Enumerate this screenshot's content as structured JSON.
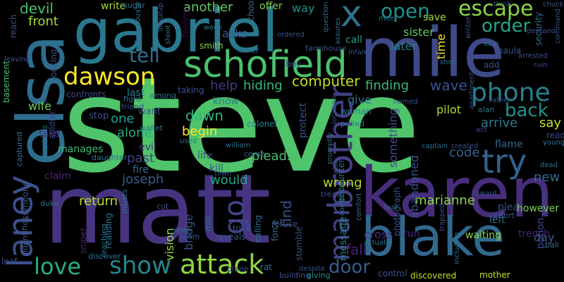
{
  "words": [
    {
      "text": "steve",
      "color": "#4fc46a"
    },
    {
      "text": "matt",
      "color": "#463480"
    },
    {
      "text": "elsa",
      "color": "#2e6e8e"
    },
    {
      "text": "gabriel",
      "color": "#2a788e"
    },
    {
      "text": "mile",
      "color": "#3e4a89"
    },
    {
      "text": "karen",
      "color": "#472d7b"
    },
    {
      "text": "blake",
      "color": "#31688e"
    },
    {
      "text": "schofield",
      "color": "#4ac16d"
    },
    {
      "text": "x",
      "color": "#2c728e"
    },
    {
      "text": "laney",
      "color": "#3b518b"
    },
    {
      "text": "brother",
      "color": "#423f85"
    },
    {
      "text": "dawson",
      "color": "#fde725"
    },
    {
      "text": "attack",
      "color": "#8fd744"
    },
    {
      "text": "show",
      "color": "#24868e"
    },
    {
      "text": "love",
      "color": "#27ad81"
    },
    {
      "text": "try",
      "color": "#34618d"
    },
    {
      "text": "phone",
      "color": "#26828e"
    },
    {
      "text": "go",
      "color": "#404688"
    },
    {
      "text": "man",
      "color": "#414487"
    },
    {
      "text": "escape",
      "color": "#8bd646"
    },
    {
      "text": "open",
      "color": "#21918c"
    },
    {
      "text": "tell",
      "color": "#2e6f8e"
    },
    {
      "text": "back",
      "color": "#20928c"
    },
    {
      "text": "order",
      "color": "#21a585"
    },
    {
      "text": "devil",
      "color": "#46c06f"
    },
    {
      "text": "front",
      "color": "#a5db36"
    },
    {
      "text": "door",
      "color": "#365c8d"
    },
    {
      "text": "computer",
      "color": "#c2df23"
    },
    {
      "text": "hiding",
      "color": "#38b977"
    },
    {
      "text": "help",
      "color": "#453882"
    },
    {
      "text": "finding",
      "color": "#3aba76"
    },
    {
      "text": "wave",
      "color": "#3b528b"
    },
    {
      "text": "dawn",
      "color": "#31b57b"
    },
    {
      "text": "begin",
      "color": "#fde725"
    },
    {
      "text": "one",
      "color": "#1f9f88"
    },
    {
      "text": "alone",
      "color": "#24aa83"
    },
    {
      "text": "arrive",
      "color": "#2a788e"
    },
    {
      "text": "say",
      "color": "#c8e020"
    },
    {
      "text": "code",
      "color": "#33638d"
    },
    {
      "text": "past",
      "color": "#3f4788"
    },
    {
      "text": "joseph",
      "color": "#375b8d"
    },
    {
      "text": "return",
      "color": "#b5de2b"
    },
    {
      "text": "would",
      "color": "#22a884"
    },
    {
      "text": "wrong",
      "color": "#b2dd2d"
    },
    {
      "text": "marianne",
      "color": "#8bd646"
    },
    {
      "text": "new",
      "color": "#2f6c8e"
    },
    {
      "text": "abandoned",
      "color": "#3b528b"
    },
    {
      "text": "fall",
      "color": "#482173"
    },
    {
      "text": "find",
      "color": "#3b528b"
    },
    {
      "text": "pleads",
      "color": "#4ac16d"
    },
    {
      "text": "vision",
      "color": "#95d840"
    },
    {
      "text": "bridge",
      "color": "#3b528b"
    },
    {
      "text": "wife",
      "color": "#6ece58"
    },
    {
      "text": "sister",
      "color": "#5ec962"
    },
    {
      "text": "later",
      "color": "#26828e"
    },
    {
      "text": "save",
      "color": "#a0da39"
    },
    {
      "text": "call",
      "color": "#1fa088"
    },
    {
      "text": "time",
      "color": "#fde725"
    },
    {
      "text": "asks",
      "color": "#375b8d"
    },
    {
      "text": "give",
      "color": "#2d718e"
    },
    {
      "text": "something",
      "color": "#3e4c8a"
    },
    {
      "text": "protect",
      "color": "#3b528b"
    },
    {
      "text": "message",
      "color": "#25858e"
    },
    {
      "text": "cross",
      "color": "#472f7d"
    },
    {
      "text": "left",
      "color": "#2a788e"
    },
    {
      "text": "pilot",
      "color": "#a8db34"
    },
    {
      "text": "flame",
      "color": "#31688e"
    },
    {
      "text": "read",
      "color": "#3e4989"
    },
    {
      "text": "plea",
      "color": "#3e4a89"
    },
    {
      "text": "however",
      "color": "#7ad151"
    },
    {
      "text": "day",
      "color": "#355e8d"
    },
    {
      "text": "trench",
      "color": "#482475"
    },
    {
      "text": "potion",
      "color": "#404688"
    },
    {
      "text": "waiting",
      "color": "#8bd646"
    },
    {
      "text": "run",
      "color": "#482677"
    },
    {
      "text": "discovered",
      "color": "#c2df23"
    },
    {
      "text": "mother",
      "color": "#c8e020"
    },
    {
      "text": "manages",
      "color": "#3fbc73"
    },
    {
      "text": "take",
      "color": "#472d7b"
    },
    {
      "text": "fire",
      "color": "#2e6e8e"
    },
    {
      "text": "evil",
      "color": "#482878"
    },
    {
      "text": "life",
      "color": "#3b528b"
    },
    {
      "text": "kill",
      "color": "#3b528b"
    },
    {
      "text": "claim",
      "color": "#482677"
    },
    {
      "text": "basement",
      "color": "#4ac16d"
    },
    {
      "text": "looking",
      "color": "#3b528b"
    },
    {
      "text": "confronts",
      "color": "#3e4989"
    },
    {
      "text": "last",
      "color": "#27808e"
    },
    {
      "text": "soldier",
      "color": "#3e4a89"
    },
    {
      "text": "colonel",
      "color": "#26828e"
    },
    {
      "text": "know",
      "color": "#2a788e"
    },
    {
      "text": "another",
      "color": "#5ec962"
    },
    {
      "text": "write",
      "color": "#a0da39"
    },
    {
      "text": "offer",
      "color": "#7ad151"
    },
    {
      "text": "way",
      "color": "#20928c"
    },
    {
      "text": "security",
      "color": "#2d708e"
    },
    {
      "text": "reach",
      "color": "#3b528b"
    },
    {
      "text": "feeling",
      "color": "#440154"
    },
    {
      "text": "someone",
      "color": "#3b528b"
    },
    {
      "text": "realising",
      "color": "#2a788e"
    },
    {
      "text": "reveals",
      "color": "#38588c"
    },
    {
      "text": "refuse",
      "color": "#3b528b"
    },
    {
      "text": "photograph",
      "color": "#3b528b"
    },
    {
      "text": "encounter",
      "color": "#2d708e"
    },
    {
      "text": "calling",
      "color": "#2c728e"
    },
    {
      "text": "force",
      "color": "#2c728e"
    },
    {
      "text": "stumble",
      "color": "#3b528b"
    },
    {
      "text": "rat",
      "color": "#2c728e"
    },
    {
      "text": "building",
      "color": "#3b528b"
    },
    {
      "text": "giving",
      "color": "#21918c"
    },
    {
      "text": "control",
      "color": "#3b528b"
    },
    {
      "text": "leaf",
      "color": "#3b528b"
    },
    {
      "text": "identifies",
      "color": "#3b528b"
    },
    {
      "text": "sniper",
      "color": "#482878"
    },
    {
      "text": "reaching",
      "color": "#2c728e"
    },
    {
      "text": "plane",
      "color": "#3b528b"
    },
    {
      "text": "discover",
      "color": "#2c728e"
    },
    {
      "text": "room",
      "color": "#3b528b"
    },
    {
      "text": "trick",
      "color": "#3b528b"
    },
    {
      "text": "milk",
      "color": "#2c728e"
    },
    {
      "text": "note",
      "color": "#2c728e"
    },
    {
      "text": "cut",
      "color": "#3b528b"
    },
    {
      "text": "insists",
      "color": "#2c728e"
    },
    {
      "text": "duke",
      "color": "#2c728e"
    },
    {
      "text": "explains",
      "color": "#2c728e"
    },
    {
      "text": "captured",
      "color": "#2c728e"
    },
    {
      "text": "daughter",
      "color": "#2c728e"
    },
    {
      "text": "wallet",
      "color": "#2c728e"
    },
    {
      "text": "friend",
      "color": "#3b528b"
    },
    {
      "text": "fight",
      "color": "#2c728e"
    },
    {
      "text": "stop",
      "color": "#3b528b"
    },
    {
      "text": "want",
      "color": "#3b528b"
    },
    {
      "text": "among",
      "color": "#2c728e"
    },
    {
      "text": "taking",
      "color": "#3b528b"
    },
    {
      "text": "smith",
      "color": "#8bd646"
    },
    {
      "text": "boy",
      "color": "#3b528b"
    },
    {
      "text": "week",
      "color": "#2c728e"
    },
    {
      "text": "chooses",
      "color": "#2c728e"
    },
    {
      "text": "farmhouse",
      "color": "#3b528b"
    },
    {
      "text": "father",
      "color": "#2c728e"
    },
    {
      "text": "shoot",
      "color": "#2c728e"
    },
    {
      "text": "shot",
      "color": "#2c728e"
    },
    {
      "text": "ordered",
      "color": "#3b528b"
    },
    {
      "text": "assures",
      "color": "#2c728e"
    },
    {
      "text": "question",
      "color": "#2c728e"
    },
    {
      "text": "infant",
      "color": "#3b528b"
    },
    {
      "text": "meet",
      "color": "#2c728e"
    },
    {
      "text": "sugar",
      "color": "#2c728e"
    },
    {
      "text": "acknowledges",
      "color": "#2c728e"
    },
    {
      "text": "drunken",
      "color": "#3b528b"
    },
    {
      "text": "woman",
      "color": "#2c728e"
    },
    {
      "text": "named",
      "color": "#3b528b"
    },
    {
      "text": "pulled",
      "color": "#2c728e"
    },
    {
      "text": "location",
      "color": "#3b528b"
    },
    {
      "text": "captain",
      "color": "#2c728e"
    },
    {
      "text": "created",
      "color": "#3b528b"
    },
    {
      "text": "come",
      "color": "#2c728e"
    },
    {
      "text": "william",
      "color": "#2c728e"
    },
    {
      "text": "used",
      "color": "#2c728e"
    },
    {
      "text": "town",
      "color": "#3b528b"
    },
    {
      "text": "promptly",
      "color": "#2c728e"
    },
    {
      "text": "also",
      "color": "#3b528b"
    },
    {
      "text": "treat",
      "color": "#3b528b"
    },
    {
      "text": "company",
      "color": "#2c728e"
    },
    {
      "text": "despite",
      "color": "#3b528b"
    },
    {
      "text": "comfort",
      "color": "#2c728e"
    },
    {
      "text": "actually",
      "color": "#2c728e"
    },
    {
      "text": "fear",
      "color": "#2c728e"
    },
    {
      "text": "trapped",
      "color": "#3b528b"
    },
    {
      "text": "including",
      "color": "#2c728e"
    },
    {
      "text": "effort",
      "color": "#3b528b"
    },
    {
      "text": "several",
      "color": "#3b528b"
    },
    {
      "text": "ball",
      "color": "#2c728e"
    },
    {
      "text": "toward",
      "color": "#3b528b"
    },
    {
      "text": "act",
      "color": "#3b528b"
    },
    {
      "text": "apartment",
      "color": "#3b528b"
    },
    {
      "text": "rather",
      "color": "#3b528b"
    },
    {
      "text": "alan",
      "color": "#2c728e"
    },
    {
      "text": "dead",
      "color": "#2c728e"
    },
    {
      "text": "young",
      "color": "#2c728e"
    },
    {
      "text": "chuck",
      "color": "#3b528b"
    },
    {
      "text": "demand",
      "color": "#3b528b"
    },
    {
      "text": "paula",
      "color": "#3b528b"
    },
    {
      "text": "arrested",
      "color": "#3b528b"
    },
    {
      "text": "ruin",
      "color": "#3b528b"
    },
    {
      "text": "command",
      "color": "#3b528b"
    },
    {
      "text": "add",
      "color": "#3b528b"
    },
    {
      "text": "able",
      "color": "#2c728e"
    },
    {
      "text": "winter",
      "color": "#3b528b"
    },
    {
      "text": "think",
      "color": "#3b528b"
    },
    {
      "text": "n",
      "color": "#3b528b"
    },
    {
      "text": "leaving",
      "color": "#3b528b"
    }
  ]
}
